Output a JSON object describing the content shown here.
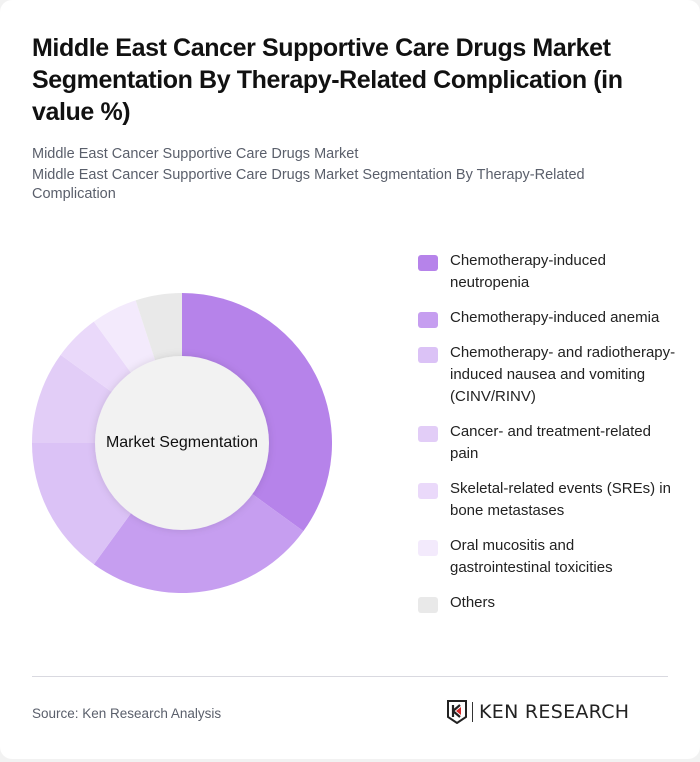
{
  "header": {
    "title": "Middle East Cancer Supportive Care Drugs Market Segmentation By Therapy-Related Complication (in value %)",
    "subtitle_line1": "Middle East Cancer Supportive Care Drugs Market",
    "subtitle_line2": "Middle East Cancer Supportive Care Drugs Market Segmentation By Therapy-Related Complication"
  },
  "chart_data": {
    "type": "pie",
    "subtype": "donut",
    "title": "Middle East Cancer Supportive Care Drugs Market Segmentation By Therapy-Related Complication (in value %)",
    "center_label": "Market Segmentation",
    "categories": [
      "Chemotherapy-induced neutropenia",
      "Chemotherapy-induced anemia",
      "Chemotherapy- and radiotherapy-induced nausea and vomiting (CINV/RINV)",
      "Cancer- and treatment-related pain",
      "Skeletal-related events (SREs) in bone metastases",
      "Oral mucositis and gastrointestinal toxicities",
      "Others"
    ],
    "values": [
      35,
      25,
      15,
      10,
      5,
      5,
      5
    ],
    "colors": [
      "#b683ea",
      "#c69ef0",
      "#dbc2f6",
      "#e2cdf7",
      "#ead9fa",
      "#f3eafc",
      "#e9e9e9"
    ],
    "legend_position": "right"
  },
  "legend": {
    "items": [
      {
        "label": "Chemotherapy-induced neutropenia",
        "color": "#b683ea"
      },
      {
        "label": "Chemotherapy-induced anemia",
        "color": "#c69ef0"
      },
      {
        "label": "Chemotherapy- and radiotherapy-induced nausea and vomiting (CINV/RINV)",
        "color": "#dbc2f6"
      },
      {
        "label": "Cancer- and treatment-related pain",
        "color": "#e2cdf7"
      },
      {
        "label": "Skeletal-related events (SREs) in bone metastases",
        "color": "#ead9fa"
      },
      {
        "label": "Oral mucositis and gastrointestinal toxicities",
        "color": "#f3eafc"
      },
      {
        "label": "Others",
        "color": "#e9e9e9"
      }
    ]
  },
  "footer": {
    "source": "Source: Ken Research Analysis",
    "logo_text": "KEN RESEARCH"
  }
}
